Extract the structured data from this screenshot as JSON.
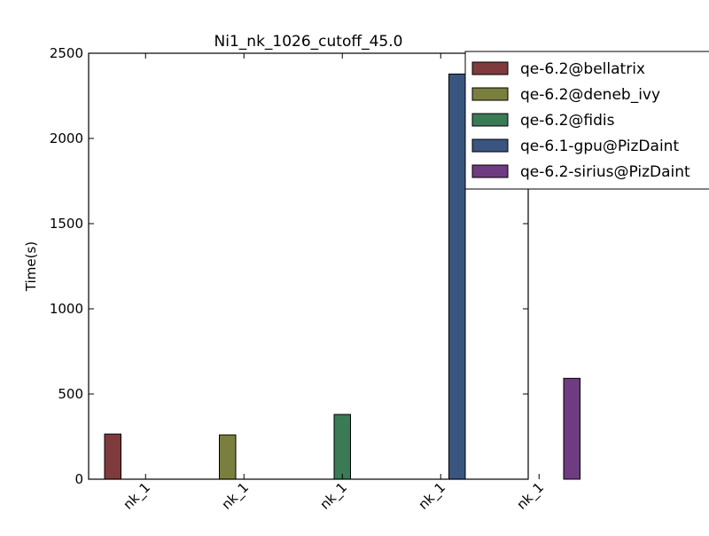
{
  "chart_data": {
    "type": "bar",
    "title": "Ni1_nk_1026_cutoff_45.0",
    "xlabel": "",
    "ylabel": "Time(s)",
    "ylim": [
      0,
      2500
    ],
    "yticks": [
      "0",
      "500",
      "1000",
      "1500",
      "2000",
      "2500"
    ],
    "categories": [
      "nk_1",
      "nk_1",
      "nk_1",
      "nk_1",
      "nk_1"
    ],
    "grid": false,
    "legend_position": "top-right",
    "series": [
      {
        "name": "qe-6.2@bellatrix",
        "color": "#7f3a3e",
        "values": [
          265,
          0,
          0,
          0,
          0
        ]
      },
      {
        "name": "qe-6.2@deneb_ivy",
        "color": "#7a7f3e",
        "values": [
          0,
          260,
          0,
          0,
          0
        ]
      },
      {
        "name": "qe-6.2@fidis",
        "color": "#3a7a55",
        "values": [
          0,
          0,
          380,
          0,
          0
        ]
      },
      {
        "name": "qe-6.1-gpu@PizDaint",
        "color": "#3a557f",
        "values": [
          0,
          0,
          0,
          2378,
          0
        ]
      },
      {
        "name": "qe-6.2-sirius@PizDaint",
        "color": "#6e3c80",
        "values": [
          0,
          0,
          0,
          0,
          592
        ]
      }
    ]
  }
}
